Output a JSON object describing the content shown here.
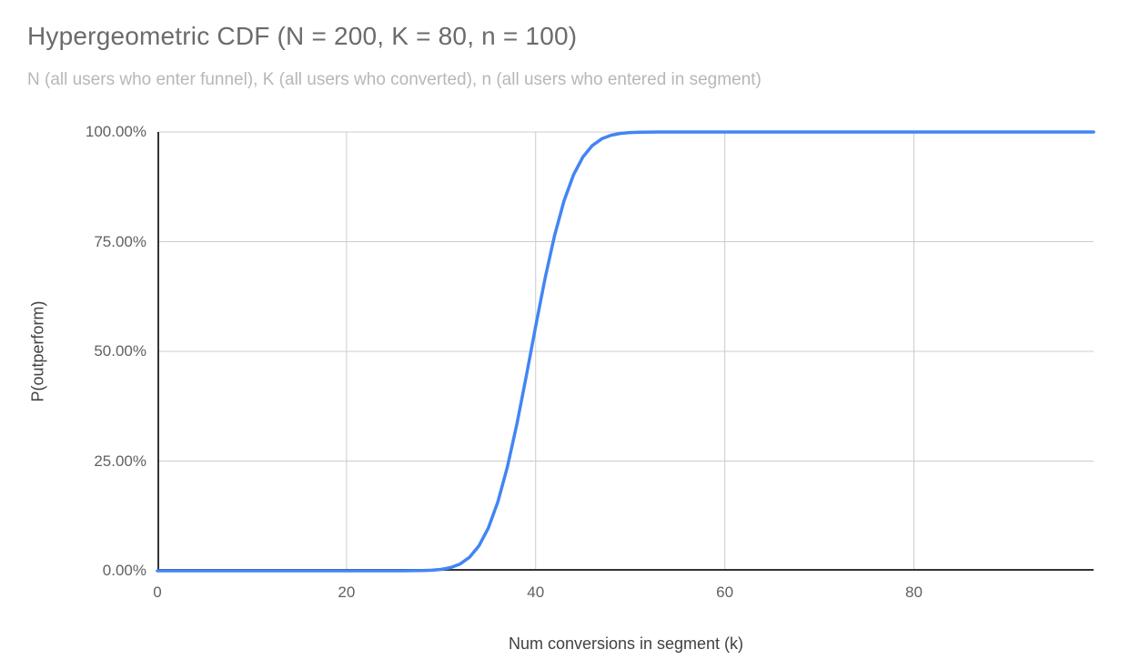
{
  "header": {
    "title": "Hypergeometric CDF (N = 200, K = 80, n = 100)",
    "subtitle": "N (all users who enter funnel), K (all users who converted), n (all users who entered in segment)"
  },
  "colors": {
    "background": "#ffffff",
    "line": "#4285f4",
    "grid": "#cccccc",
    "axis": "#333333",
    "title": "#6b6b6b",
    "subtitle": "#b7b7b7",
    "tick_label": "#616161",
    "axis_title": "#424242"
  },
  "chart_data": {
    "type": "line",
    "title": "Hypergeometric CDF (N = 200, K = 80, n = 100)",
    "subtitle": "N (all users who enter funnel), K (all users who converted), n (all users who entered in segment)",
    "xlabel": "Num conversions in segment (k)",
    "ylabel": "P(outperform)",
    "xlim": [
      0,
      99
    ],
    "ylim": [
      0,
      1
    ],
    "grid": true,
    "legend": "none",
    "x_ticks": [
      {
        "value": 0,
        "label": "0"
      },
      {
        "value": 20,
        "label": "20"
      },
      {
        "value": 40,
        "label": "40"
      },
      {
        "value": 60,
        "label": "60"
      },
      {
        "value": 80,
        "label": "80"
      }
    ],
    "y_ticks": [
      {
        "value": 0.0,
        "label": "0.00%"
      },
      {
        "value": 0.25,
        "label": "25.00%"
      },
      {
        "value": 0.5,
        "label": "50.00%"
      },
      {
        "value": 0.75,
        "label": "75.00%"
      },
      {
        "value": 1.0,
        "label": "100.00%"
      }
    ],
    "series": [
      {
        "name": "P(outperform)",
        "color": "#4285f4",
        "x": [
          0,
          1,
          2,
          3,
          4,
          5,
          6,
          7,
          8,
          9,
          10,
          11,
          12,
          13,
          14,
          15,
          16,
          17,
          18,
          19,
          20,
          21,
          22,
          23,
          24,
          25,
          26,
          27,
          28,
          29,
          30,
          31,
          32,
          33,
          34,
          35,
          36,
          37,
          38,
          39,
          40,
          41,
          42,
          43,
          44,
          45,
          46,
          47,
          48,
          49,
          50,
          51,
          52,
          53,
          54,
          55,
          56,
          57,
          58,
          59,
          60,
          61,
          62,
          63,
          64,
          65,
          66,
          67,
          68,
          69,
          70,
          71,
          72,
          73,
          74,
          75,
          76,
          77,
          78,
          79,
          80,
          81,
          82,
          83,
          84,
          85,
          86,
          87,
          88,
          89,
          90,
          91,
          92,
          93,
          94,
          95,
          96,
          97,
          98,
          99
        ],
        "y": [
          0,
          0,
          0,
          0,
          0,
          0,
          0,
          0,
          0,
          0,
          0,
          0,
          0,
          0,
          0,
          0,
          0,
          0,
          0,
          0,
          0,
          0,
          0,
          0,
          0,
          0,
          0.0001,
          0.0002,
          0.0005,
          0.0013,
          0.0031,
          0.0072,
          0.0154,
          0.0307,
          0.0567,
          0.0977,
          0.1569,
          0.2358,
          0.3329,
          0.4428,
          0.5572,
          0.6671,
          0.7642,
          0.8431,
          0.9023,
          0.9433,
          0.9693,
          0.9846,
          0.9928,
          0.9969,
          0.9987,
          0.9995,
          0.9998,
          0.9999,
          1,
          1,
          1,
          1,
          1,
          1,
          1,
          1,
          1,
          1,
          1,
          1,
          1,
          1,
          1,
          1,
          1,
          1,
          1,
          1,
          1,
          1,
          1,
          1,
          1,
          1,
          1,
          1,
          1,
          1,
          1,
          1,
          1,
          1,
          1,
          1,
          1,
          1,
          1,
          1,
          1,
          1,
          1,
          1,
          1,
          1
        ]
      }
    ]
  }
}
